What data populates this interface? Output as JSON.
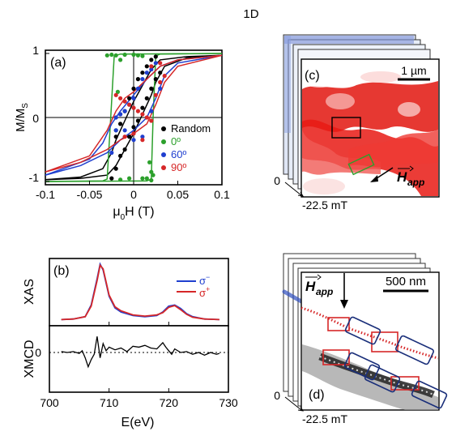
{
  "figure_label": "1D",
  "panels": {
    "a": {
      "label": "(a)",
      "ylabel_main": "M/M",
      "ylabel_sub": "S",
      "xlabel_mu": "μ",
      "xlabel_sub": "0",
      "xlabel_rest": "H (T)",
      "xticks": [
        "-0.1",
        "-0.05",
        "0",
        "0.05",
        "0.1"
      ],
      "yticks": [
        "1",
        "0",
        "-1"
      ]
    },
    "b": {
      "label": "(b)",
      "ylabel_top": "XAS",
      "ylabel_bottom": "XMCD",
      "legend_minus_base": "σ",
      "legend_minus_sup": "−",
      "legend_plus_base": "σ",
      "legend_plus_sup": "+",
      "xlabel": "E(eV)",
      "xticks": [
        "700",
        "710",
        "720",
        "730"
      ],
      "ytick_bottom": "0"
    },
    "c": {
      "label": "(c)",
      "scale_label": "1 µm",
      "field_label": "H",
      "field_sub": "app",
      "stack_zero": "0",
      "stack_field": "-22.5 mT"
    },
    "d": {
      "label": "(d)",
      "scale_label": "500 nm",
      "field_label": "H",
      "field_sub": "app",
      "stack_zero": "0",
      "stack_field": "-22.5 mT"
    }
  },
  "chart_data": [
    {
      "panel": "a",
      "type": "scatter",
      "xlabel": "μ0H (T)",
      "ylabel": "M/MS",
      "xlim": [
        -0.1,
        0.1
      ],
      "ylim": [
        -1.05,
        1.05
      ],
      "xticks": [
        -0.1,
        -0.05,
        0,
        0.05,
        0.1
      ],
      "yticks": [
        -1,
        0,
        1
      ],
      "legend_position": "center-right",
      "series": [
        {
          "name": "Random",
          "color": "#000000",
          "points": [
            [
              -0.025,
              -0.95
            ],
            [
              -0.02,
              -0.8
            ],
            [
              -0.015,
              -0.6
            ],
            [
              -0.01,
              -0.5
            ],
            [
              -0.005,
              -0.3
            ],
            [
              0,
              -0.15
            ],
            [
              0.005,
              -0.05
            ],
            [
              0.01,
              0.15
            ],
            [
              0.015,
              0.3
            ],
            [
              0.02,
              0.45
            ],
            [
              0.025,
              0.6
            ],
            [
              0.03,
              0.7
            ],
            [
              -0.02,
              -0.3
            ],
            [
              -0.015,
              -0.1
            ],
            [
              -0.01,
              0.1
            ],
            [
              -0.005,
              0.3
            ],
            [
              0,
              0.45
            ],
            [
              0.005,
              0.6
            ],
            [
              0.01,
              0.7
            ],
            [
              0.015,
              0.8
            ],
            [
              0.02,
              0.9
            ],
            [
              0.025,
              0.95
            ]
          ],
          "curves": [
            [
              [
                -0.1,
                -0.97
              ],
              [
                -0.06,
                -0.95
              ],
              [
                -0.03,
                -0.9
              ],
              [
                -0.02,
                -0.75
              ],
              [
                -0.01,
                -0.5
              ],
              [
                0,
                -0.25
              ],
              [
                0.01,
                0.05
              ],
              [
                0.02,
                0.35
              ],
              [
                0.025,
                0.55
              ],
              [
                0.035,
                0.8
              ],
              [
                0.06,
                0.93
              ],
              [
                0.1,
                0.97
              ]
            ],
            [
              [
                0.1,
                0.97
              ],
              [
                0.06,
                0.95
              ],
              [
                0.03,
                0.9
              ],
              [
                0.02,
                0.75
              ],
              [
                0.01,
                0.5
              ],
              [
                0,
                0.25
              ],
              [
                -0.01,
                -0.05
              ],
              [
                -0.02,
                -0.35
              ],
              [
                -0.025,
                -0.55
              ],
              [
                -0.035,
                -0.8
              ],
              [
                -0.06,
                -0.93
              ],
              [
                -0.1,
                -0.97
              ]
            ]
          ]
        },
        {
          "name": "0º",
          "color": "#2ca02c",
          "points": [
            [
              -0.03,
              0.97
            ],
            [
              -0.02,
              0.97
            ],
            [
              -0.01,
              0.98
            ],
            [
              0,
              0.98
            ],
            [
              0.005,
              0.97
            ],
            [
              0.01,
              0.96
            ],
            [
              0.02,
              -0.85
            ],
            [
              0.022,
              -0.9
            ],
            [
              0.018,
              -0.7
            ],
            [
              0.015,
              -0.95
            ],
            [
              -0.005,
              -0.95
            ],
            [
              -0.015,
              -0.97
            ],
            [
              -0.02,
              -0.2
            ],
            [
              -0.018,
              0.4
            ],
            [
              -0.015,
              0.9
            ],
            [
              0.01,
              -0.95
            ],
            [
              0.02,
              -0.98
            ],
            [
              -0.025,
              0.98
            ]
          ],
          "curves": [
            [
              [
                -0.1,
                -1.0
              ],
              [
                -0.035,
                -0.99
              ],
              [
                -0.03,
                -0.96
              ],
              [
                -0.026,
                0
              ],
              [
                -0.022,
                0.96
              ],
              [
                -0.015,
                0.99
              ],
              [
                0.1,
                1.0
              ]
            ],
            [
              [
                0.1,
                1.0
              ],
              [
                0.03,
                0.99
              ],
              [
                0.025,
                0.96
              ],
              [
                0.022,
                0
              ],
              [
                0.02,
                -0.96
              ],
              [
                0.015,
                -0.99
              ],
              [
                -0.1,
                -1.0
              ]
            ]
          ]
        },
        {
          "name": "60º",
          "color": "#1f3fcf",
          "points": [
            [
              -0.025,
              -0.55
            ],
            [
              -0.02,
              -0.2
            ],
            [
              -0.015,
              0.05
            ],
            [
              -0.01,
              0.1
            ],
            [
              -0.005,
              0.2
            ],
            [
              0,
              0.3
            ],
            [
              0.005,
              0.45
            ],
            [
              0.01,
              0.6
            ],
            [
              0.015,
              0.7
            ],
            [
              0.02,
              0.75
            ],
            [
              0.025,
              0.85
            ],
            [
              -0.02,
              0
            ],
            [
              -0.015,
              0.05
            ],
            [
              -0.01,
              -0.2
            ],
            [
              0,
              -0.35
            ],
            [
              0.01,
              -0.3
            ],
            [
              0.02,
              0.1
            ],
            [
              0.03,
              0.45
            ]
          ],
          "curves": [
            [
              [
                -0.1,
                -0.9
              ],
              [
                -0.06,
                -0.75
              ],
              [
                -0.03,
                -0.55
              ],
              [
                -0.015,
                -0.35
              ],
              [
                0,
                -0.2
              ],
              [
                0.015,
                0.0
              ],
              [
                0.025,
                0.3
              ],
              [
                0.035,
                0.65
              ],
              [
                0.05,
                0.85
              ],
              [
                0.1,
                0.97
              ]
            ],
            [
              [
                0.1,
                0.97
              ],
              [
                0.05,
                0.9
              ],
              [
                0.03,
                0.8
              ],
              [
                0.015,
                0.6
              ],
              [
                0,
                0.35
              ],
              [
                -0.015,
                0.1
              ],
              [
                -0.025,
                -0.1
              ],
              [
                -0.035,
                -0.4
              ],
              [
                -0.05,
                -0.65
              ],
              [
                -0.1,
                -0.9
              ]
            ]
          ]
        },
        {
          "name": "90º",
          "color": "#d62728",
          "points": [
            [
              -0.02,
              0.35
            ],
            [
              -0.015,
              0.3
            ],
            [
              -0.01,
              0.25
            ],
            [
              -0.005,
              0.2
            ],
            [
              0,
              0.15
            ],
            [
              0.005,
              0.1
            ],
            [
              0.01,
              0.05
            ],
            [
              0.015,
              0.0
            ],
            [
              0.02,
              -0.05
            ],
            [
              0.025,
              0.35
            ],
            [
              0.03,
              0.55
            ],
            [
              0.035,
              0.65
            ],
            [
              -0.01,
              -0.3
            ],
            [
              0,
              -0.25
            ],
            [
              0.01,
              -0.35
            ],
            [
              0.02,
              0.8
            ],
            [
              0.03,
              0.85
            ]
          ],
          "curves": [
            [
              [
                -0.1,
                -0.85
              ],
              [
                -0.06,
                -0.7
              ],
              [
                -0.03,
                -0.5
              ],
              [
                -0.015,
                -0.35
              ],
              [
                0,
                -0.25
              ],
              [
                0.015,
                -0.1
              ],
              [
                0.025,
                0.2
              ],
              [
                0.035,
                0.55
              ],
              [
                0.05,
                0.8
              ],
              [
                0.1,
                0.97
              ]
            ],
            [
              [
                0.1,
                0.97
              ],
              [
                0.05,
                0.9
              ],
              [
                0.03,
                0.8
              ],
              [
                0.015,
                0.6
              ],
              [
                0,
                0.4
              ],
              [
                -0.01,
                0.3
              ],
              [
                -0.02,
                0.1
              ],
              [
                -0.03,
                -0.2
              ],
              [
                -0.05,
                -0.6
              ],
              [
                -0.1,
                -0.85
              ]
            ]
          ]
        }
      ]
    },
    {
      "panel": "b",
      "type": "line",
      "xlabel": "E(eV)",
      "ylabel_top": "XAS",
      "ylabel_bottom": "XMCD",
      "xlim": [
        700,
        730
      ],
      "xticks": [
        700,
        710,
        720,
        730
      ],
      "legend_position": "top-right",
      "xas_series": [
        {
          "name": "σ−",
          "color": "#1f3fcf",
          "x": [
            702,
            704,
            706,
            707,
            708,
            708.5,
            709,
            710,
            711,
            712,
            714,
            716,
            718,
            719,
            720,
            721,
            722,
            723,
            724,
            726,
            728.5
          ],
          "y": [
            0.05,
            0.06,
            0.1,
            0.3,
            0.75,
            1.0,
            0.9,
            0.45,
            0.25,
            0.18,
            0.12,
            0.1,
            0.12,
            0.18,
            0.28,
            0.3,
            0.24,
            0.15,
            0.1,
            0.06,
            0.05
          ]
        },
        {
          "name": "σ+",
          "color": "#d62728",
          "x": [
            702,
            704,
            706,
            707,
            708,
            708.5,
            709,
            710,
            711,
            712,
            714,
            716,
            718,
            719,
            720,
            721,
            722,
            723,
            724,
            726,
            728.5
          ],
          "y": [
            0.05,
            0.06,
            0.1,
            0.28,
            0.72,
            0.98,
            0.92,
            0.47,
            0.27,
            0.2,
            0.13,
            0.11,
            0.13,
            0.17,
            0.26,
            0.29,
            0.22,
            0.14,
            0.09,
            0.06,
            0.05
          ]
        }
      ],
      "xmcd": {
        "color": "#000000",
        "x": [
          702,
          703,
          704,
          705,
          705.5,
          706,
          706.5,
          707,
          707.5,
          708,
          708.5,
          709,
          709.5,
          710,
          711,
          712,
          713,
          714,
          715,
          716,
          717,
          718,
          719,
          719.5,
          720,
          720.5,
          721,
          722,
          723,
          724,
          725,
          726,
          727,
          728,
          728.5
        ],
        "y": [
          0.05,
          0.0,
          0.05,
          -0.05,
          0.1,
          -0.3,
          -0.8,
          -0.4,
          -0.1,
          0.9,
          -0.3,
          0.5,
          0.1,
          0.3,
          0.15,
          0.25,
          0.05,
          0.35,
          0.3,
          0.4,
          0.25,
          0.2,
          0.55,
          0.3,
          0.1,
          -0.1,
          0.2,
          0.0,
          0.05,
          -0.1,
          0.0,
          -0.15,
          0.0,
          -0.1,
          -0.05
        ]
      }
    }
  ]
}
